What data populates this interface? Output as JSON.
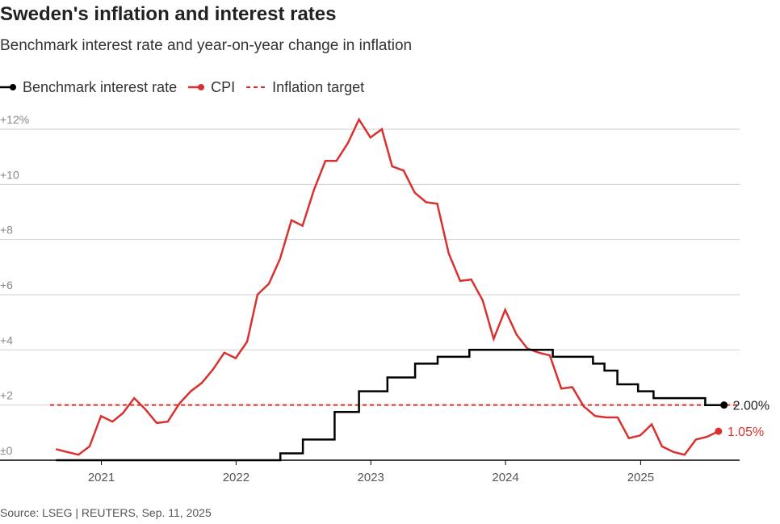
{
  "header": {
    "title": "Sweden's inflation and interest rates",
    "subtitle": "Benchmark interest rate and year-on-year change in inflation"
  },
  "legend": {
    "rate_label": "Benchmark interest rate",
    "cpi_label": "CPI",
    "target_label": "Inflation target"
  },
  "source": "Source: LSEG | REUTERS, Sep. 11, 2025",
  "colors": {
    "rate": "#000000",
    "cpi": "#d9312f",
    "target": "#d9312f",
    "grid": "#cfcfcf",
    "axis": "#000000"
  },
  "chart_data": {
    "type": "line",
    "title": "Sweden's inflation and interest rates",
    "subtitle": "Benchmark interest rate and year-on-year change in inflation",
    "xlabel": "",
    "ylabel": "",
    "ylim": [
      0,
      12
    ],
    "xlim": [
      "2020-08-15",
      "2025-08-31"
    ],
    "y_ticks": [
      {
        "value": 0,
        "label": "±0"
      },
      {
        "value": 2,
        "label": "+2"
      },
      {
        "value": 4,
        "label": "+4"
      },
      {
        "value": 6,
        "label": "+6"
      },
      {
        "value": 8,
        "label": "+8"
      },
      {
        "value": 10,
        "label": "+10"
      },
      {
        "value": 12,
        "label": "+12%"
      }
    ],
    "x_ticks": [
      {
        "date": "2021-01-01",
        "label": "2021"
      },
      {
        "date": "2022-01-01",
        "label": "2022"
      },
      {
        "date": "2023-01-01",
        "label": "2023"
      },
      {
        "date": "2024-01-01",
        "label": "2024"
      },
      {
        "date": "2025-01-01",
        "label": "2025"
      }
    ],
    "grid": true,
    "legend_position": "top-left",
    "series": [
      {
        "name": "Benchmark interest rate",
        "style": "step",
        "end_label": "2.00%",
        "points": [
          [
            "2020-08-31",
            0.0
          ],
          [
            "2022-05-01",
            0.0
          ],
          [
            "2022-05-01",
            0.25
          ],
          [
            "2022-07-01",
            0.25
          ],
          [
            "2022-07-01",
            0.75
          ],
          [
            "2022-09-25",
            0.75
          ],
          [
            "2022-09-25",
            1.75
          ],
          [
            "2022-11-30",
            1.75
          ],
          [
            "2022-11-30",
            2.5
          ],
          [
            "2023-02-15",
            2.5
          ],
          [
            "2023-02-15",
            3.0
          ],
          [
            "2023-05-01",
            3.0
          ],
          [
            "2023-05-01",
            3.5
          ],
          [
            "2023-07-01",
            3.5
          ],
          [
            "2023-07-01",
            3.75
          ],
          [
            "2023-09-25",
            3.75
          ],
          [
            "2023-09-25",
            4.0
          ],
          [
            "2024-05-08",
            4.0
          ],
          [
            "2024-05-08",
            3.75
          ],
          [
            "2024-08-25",
            3.75
          ],
          [
            "2024-08-25",
            3.5
          ],
          [
            "2024-09-25",
            3.5
          ],
          [
            "2024-09-25",
            3.25
          ],
          [
            "2024-10-30",
            3.25
          ],
          [
            "2024-10-30",
            2.75
          ],
          [
            "2024-12-25",
            2.75
          ],
          [
            "2024-12-25",
            2.5
          ],
          [
            "2025-02-05",
            2.5
          ],
          [
            "2025-02-05",
            2.25
          ],
          [
            "2025-06-25",
            2.25
          ],
          [
            "2025-06-25",
            2.0
          ],
          [
            "2025-08-15",
            2.0
          ]
        ]
      },
      {
        "name": "CPI",
        "style": "line",
        "end_label": "1.05%",
        "points": [
          [
            "2020-08-31",
            0.4
          ],
          [
            "2020-09-30",
            0.3
          ],
          [
            "2020-10-31",
            0.2
          ],
          [
            "2020-11-30",
            0.5
          ],
          [
            "2020-12-31",
            1.6
          ],
          [
            "2021-01-31",
            1.4
          ],
          [
            "2021-02-28",
            1.7
          ],
          [
            "2021-03-31",
            2.25
          ],
          [
            "2021-04-30",
            1.85
          ],
          [
            "2021-05-31",
            1.35
          ],
          [
            "2021-06-30",
            1.4
          ],
          [
            "2021-07-31",
            2.05
          ],
          [
            "2021-08-31",
            2.5
          ],
          [
            "2021-09-30",
            2.8
          ],
          [
            "2021-10-31",
            3.3
          ],
          [
            "2021-11-30",
            3.9
          ],
          [
            "2021-12-31",
            3.7
          ],
          [
            "2022-01-31",
            4.3
          ],
          [
            "2022-02-28",
            6.0
          ],
          [
            "2022-03-31",
            6.4
          ],
          [
            "2022-04-30",
            7.3
          ],
          [
            "2022-05-31",
            8.7
          ],
          [
            "2022-06-30",
            8.5
          ],
          [
            "2022-07-31",
            9.8
          ],
          [
            "2022-08-31",
            10.85
          ],
          [
            "2022-09-30",
            10.85
          ],
          [
            "2022-10-31",
            11.5
          ],
          [
            "2022-11-30",
            12.35
          ],
          [
            "2022-12-31",
            11.7
          ],
          [
            "2023-01-31",
            12.0
          ],
          [
            "2023-02-28",
            10.65
          ],
          [
            "2023-03-31",
            10.5
          ],
          [
            "2023-04-30",
            9.7
          ],
          [
            "2023-05-31",
            9.35
          ],
          [
            "2023-06-30",
            9.3
          ],
          [
            "2023-07-31",
            7.5
          ],
          [
            "2023-08-31",
            6.5
          ],
          [
            "2023-09-30",
            6.55
          ],
          [
            "2023-10-31",
            5.8
          ],
          [
            "2023-11-30",
            4.4
          ],
          [
            "2023-12-31",
            5.45
          ],
          [
            "2024-01-31",
            4.55
          ],
          [
            "2024-02-29",
            4.05
          ],
          [
            "2024-03-31",
            3.9
          ],
          [
            "2024-04-30",
            3.8
          ],
          [
            "2024-05-31",
            2.6
          ],
          [
            "2024-06-30",
            2.65
          ],
          [
            "2024-07-31",
            1.95
          ],
          [
            "2024-08-31",
            1.6
          ],
          [
            "2024-09-30",
            1.55
          ],
          [
            "2024-10-31",
            1.55
          ],
          [
            "2024-11-30",
            0.8
          ],
          [
            "2024-12-31",
            0.9
          ],
          [
            "2025-01-31",
            1.3
          ],
          [
            "2025-02-28",
            0.5
          ],
          [
            "2025-03-31",
            0.3
          ],
          [
            "2025-04-30",
            0.2
          ],
          [
            "2025-05-31",
            0.75
          ],
          [
            "2025-06-30",
            0.85
          ],
          [
            "2025-07-31",
            1.05
          ]
        ]
      }
    ],
    "reference_lines": [
      {
        "name": "Inflation target",
        "value": 2.0,
        "style": "dashed"
      }
    ]
  }
}
